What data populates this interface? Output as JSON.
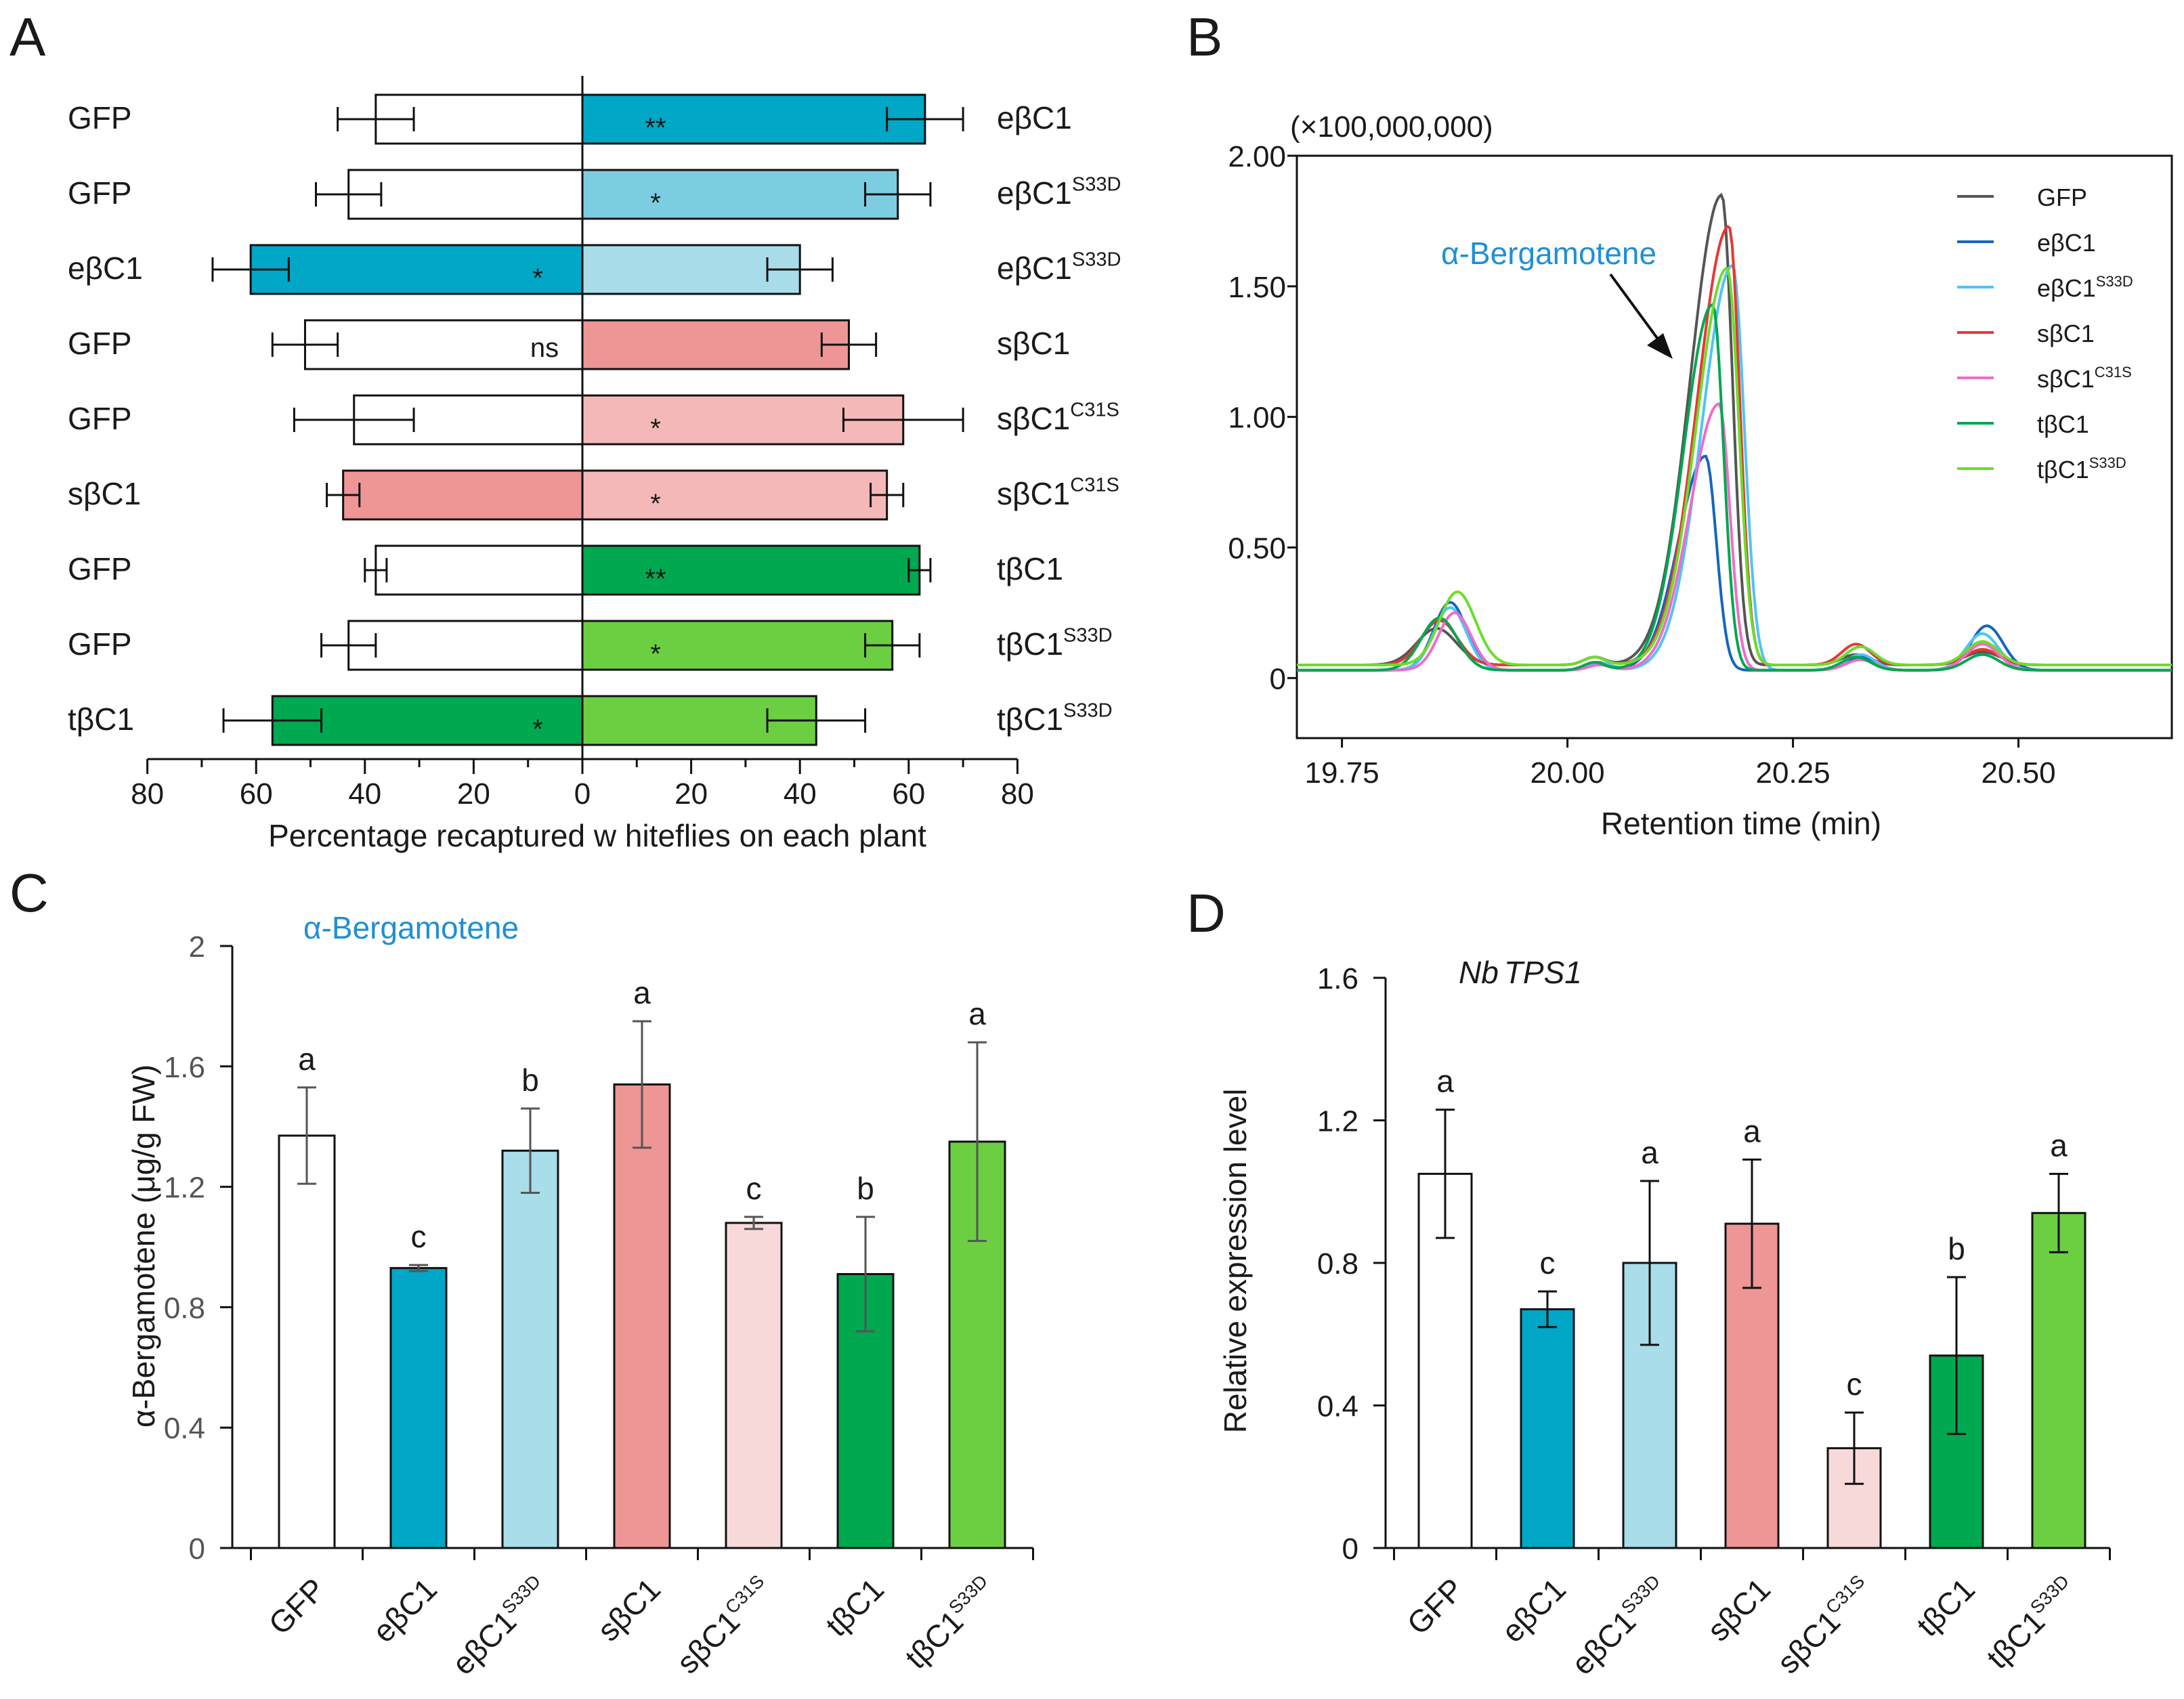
{
  "chart_data": [
    {
      "panel": "A",
      "type": "bar",
      "orientation": "horizontal-paired",
      "xlabel": "Percentage recaptured w hiteflies on each plant",
      "xticks_left": [
        "80",
        "60",
        "40",
        "20",
        "0"
      ],
      "xticks_right": [
        "20",
        "40",
        "60",
        "80"
      ],
      "xlim": [
        0,
        80
      ],
      "pairs": [
        {
          "left": {
            "label": "GFP",
            "sup": "",
            "value": 38,
            "err": 7,
            "color": "#ffffff"
          },
          "right": {
            "label": "eβC1",
            "sup": "",
            "value": 63,
            "err": 7,
            "color": "#00a7c6"
          },
          "sig": "**",
          "sig_side": "right"
        },
        {
          "left": {
            "label": "GFP",
            "sup": "",
            "value": 43,
            "err": 6,
            "color": "#ffffff"
          },
          "right": {
            "label": "eβC1",
            "sup": "S33D",
            "value": 58,
            "err": 6,
            "color": "#7dcde2"
          },
          "sig": "*",
          "sig_side": "right"
        },
        {
          "left": {
            "label": "eβC1",
            "sup": "",
            "value": 61,
            "err": 7,
            "color": "#00a7c6"
          },
          "right": {
            "label": "eβC1",
            "sup": "S33D",
            "value": 40,
            "err": 6,
            "color": "#a8dce8"
          },
          "sig": "*",
          "sig_side": "left"
        },
        {
          "left": {
            "label": "GFP",
            "sup": "",
            "value": 51,
            "err": 6,
            "color": "#ffffff"
          },
          "right": {
            "label": "sβC1",
            "sup": "",
            "value": 49,
            "err": 5,
            "color": "#ee9595"
          },
          "sig": "ns",
          "sig_side": "left"
        },
        {
          "left": {
            "label": "GFP",
            "sup": "",
            "value": 42,
            "err": 11,
            "color": "#ffffff"
          },
          "right": {
            "label": "sβC1",
            "sup": "C31S",
            "value": 59,
            "err": 11,
            "color": "#f5b8b8"
          },
          "sig": "*",
          "sig_side": "right"
        },
        {
          "left": {
            "label": "sβC1",
            "sup": "",
            "value": 44,
            "err": 3,
            "color": "#ee9595"
          },
          "right": {
            "label": "sβC1",
            "sup": "C31S",
            "value": 56,
            "err": 3,
            "color": "#f5b8b8"
          },
          "sig": "*",
          "sig_side": "right"
        },
        {
          "left": {
            "label": "GFP",
            "sup": "",
            "value": 38,
            "err": 2,
            "color": "#ffffff"
          },
          "right": {
            "label": "tβC1",
            "sup": "",
            "value": 62,
            "err": 2,
            "color": "#00a84f"
          },
          "sig": "**",
          "sig_side": "right"
        },
        {
          "left": {
            "label": "GFP",
            "sup": "",
            "value": 43,
            "err": 5,
            "color": "#ffffff"
          },
          "right": {
            "label": "tβC1",
            "sup": "S33D",
            "value": 57,
            "err": 5,
            "color": "#6ccf42"
          },
          "sig": "*",
          "sig_side": "right"
        },
        {
          "left": {
            "label": "tβC1",
            "sup": "",
            "value": 57,
            "err": 9,
            "color": "#00a84f"
          },
          "right": {
            "label": "tβC1",
            "sup": "S33D",
            "value": 43,
            "err": 9,
            "color": "#6ccf42"
          },
          "sig": "*",
          "sig_side": "left"
        }
      ]
    },
    {
      "panel": "B",
      "type": "line",
      "title": "(×100,000,000)",
      "xlabel": "Retention time (min)",
      "xticks": [
        "19.75",
        "20.00",
        "20.25",
        "20.50"
      ],
      "yticks": [
        "0",
        "0.50",
        "1.00",
        "1.50",
        "2.00"
      ],
      "xlim": [
        19.7,
        20.67
      ],
      "ylim": [
        -0.23,
        2.0
      ],
      "annotation": "α-Bergamotene",
      "series": [
        {
          "name": "GFP",
          "sup": "",
          "color": "#555555",
          "peak_x": 20.171,
          "base_y": 0.05,
          "peaks": [
            [
              19.855,
              0.14,
              0.022
            ],
            [
              20.03,
              0.03,
              0.012
            ],
            [
              20.32,
              0.04,
              0.016
            ],
            [
              20.46,
              0.05,
              0.02
            ]
          ],
          "main_height": 1.8,
          "main_sigma_left": 0.035,
          "main_sigma_right": 0.012
        },
        {
          "name": "eβC1",
          "sup": "",
          "color": "#1565c0",
          "peak_x": 20.153,
          "base_y": 0.03,
          "peaks": [
            [
              19.87,
              0.26,
              0.018
            ],
            [
              20.035,
              0.03,
              0.012
            ],
            [
              20.325,
              0.05,
              0.016
            ],
            [
              20.465,
              0.17,
              0.018
            ]
          ],
          "main_height": 0.82,
          "main_sigma_left": 0.03,
          "main_sigma_right": 0.012
        },
        {
          "name": "eβC1",
          "sup": "S33D",
          "color": "#4fc3f7",
          "peak_x": 20.183,
          "base_y": 0.03,
          "peaks": [
            [
              19.87,
              0.24,
              0.018
            ],
            [
              20.035,
              0.03,
              0.012
            ],
            [
              20.325,
              0.06,
              0.016
            ],
            [
              20.46,
              0.14,
              0.018
            ]
          ],
          "main_height": 1.55,
          "main_sigma_left": 0.034,
          "main_sigma_right": 0.013
        },
        {
          "name": "sβC1",
          "sup": "",
          "color": "#e53935",
          "peak_x": 20.179,
          "base_y": 0.05,
          "peaks": [
            [
              19.858,
              0.17,
              0.02
            ],
            [
              20.03,
              0.03,
              0.012
            ],
            [
              20.32,
              0.08,
              0.016
            ],
            [
              20.46,
              0.06,
              0.018
            ]
          ],
          "main_height": 1.68,
          "main_sigma_left": 0.035,
          "main_sigma_right": 0.012
        },
        {
          "name": "sβC1",
          "sup": "C31S",
          "color": "#f06cc8",
          "peak_x": 20.168,
          "base_y": 0.03,
          "peaks": [
            [
              19.875,
              0.22,
              0.018
            ],
            [
              20.035,
              0.02,
              0.012
            ],
            [
              20.325,
              0.04,
              0.016
            ],
            [
              20.46,
              0.1,
              0.018
            ]
          ],
          "main_height": 1.02,
          "main_sigma_left": 0.032,
          "main_sigma_right": 0.012
        },
        {
          "name": "tβC1",
          "sup": "",
          "color": "#00a651",
          "peak_x": 20.161,
          "base_y": 0.03,
          "peaks": [
            [
              19.858,
              0.2,
              0.02
            ],
            [
              20.03,
              0.03,
              0.012
            ],
            [
              20.32,
              0.05,
              0.016
            ],
            [
              20.46,
              0.06,
              0.018
            ]
          ],
          "main_height": 1.4,
          "main_sigma_left": 0.032,
          "main_sigma_right": 0.012
        },
        {
          "name": "tβC1",
          "sup": "S33D",
          "color": "#6ddc2c",
          "peak_x": 20.177,
          "base_y": 0.05,
          "peaks": [
            [
              19.878,
              0.28,
              0.02
            ],
            [
              20.03,
              0.03,
              0.012
            ],
            [
              20.325,
              0.07,
              0.016
            ],
            [
              20.46,
              0.09,
              0.018
            ]
          ],
          "main_height": 1.52,
          "main_sigma_left": 0.034,
          "main_sigma_right": 0.013
        }
      ]
    },
    {
      "panel": "C",
      "type": "bar",
      "annotation": "α-Bergamotene",
      "ylabel": "α-Bergamotene (μg/g FW)",
      "yticks": [
        "0",
        "0.4",
        "0.8",
        "1.2",
        "1.6",
        "2"
      ],
      "ylim": [
        0,
        2
      ],
      "categories": [
        {
          "label": "GFP",
          "sup": ""
        },
        {
          "label": "eβC1",
          "sup": ""
        },
        {
          "label": "eβC1",
          "sup": "S33D"
        },
        {
          "label": "sβC1",
          "sup": ""
        },
        {
          "label": "sβC1",
          "sup": "C31S"
        },
        {
          "label": "tβC1",
          "sup": ""
        },
        {
          "label": "tβC1",
          "sup": "S33D"
        }
      ],
      "values": [
        1.37,
        0.93,
        1.32,
        1.54,
        1.08,
        0.91,
        1.35
      ],
      "errors": [
        0.16,
        0.01,
        0.14,
        0.21,
        0.02,
        0.19,
        0.33
      ],
      "letters": [
        "a",
        "c",
        "b",
        "a",
        "c",
        "b",
        "a"
      ],
      "colors": [
        "#ffffff",
        "#00a7c6",
        "#a8dde9",
        "#ee9595",
        "#f8d9d9",
        "#00a84f",
        "#6ccf42"
      ]
    },
    {
      "panel": "D",
      "type": "bar",
      "annotation": "Nb",
      "annotation_2": "TPS1",
      "ylabel": "Relative expression level",
      "yticks": [
        "0",
        "0.4",
        "0.8",
        "1.2",
        "1.6"
      ],
      "ylim": [
        0,
        1.6
      ],
      "categories": [
        {
          "label": "GFP",
          "sup": ""
        },
        {
          "label": "eβC1",
          "sup": ""
        },
        {
          "label": "eβC1",
          "sup": "S33D"
        },
        {
          "label": "sβC1",
          "sup": ""
        },
        {
          "label": "sβC1",
          "sup": "C31S"
        },
        {
          "label": "tβC1",
          "sup": ""
        },
        {
          "label": "tβC1",
          "sup": "S33D"
        }
      ],
      "values": [
        1.05,
        0.67,
        0.8,
        0.91,
        0.28,
        0.54,
        0.94
      ],
      "errors": [
        0.18,
        0.05,
        0.23,
        0.18,
        0.1,
        0.22,
        0.11
      ],
      "letters": [
        "a",
        "c",
        "a",
        "a",
        "c",
        "b",
        "a"
      ],
      "colors": [
        "#ffffff",
        "#00a7c6",
        "#a8dde9",
        "#ee9595",
        "#f8d9d9",
        "#00a84f",
        "#6ccf42"
      ]
    }
  ],
  "panel_labels": {
    "a": "A",
    "b": "B",
    "c": "C",
    "d": "D"
  }
}
